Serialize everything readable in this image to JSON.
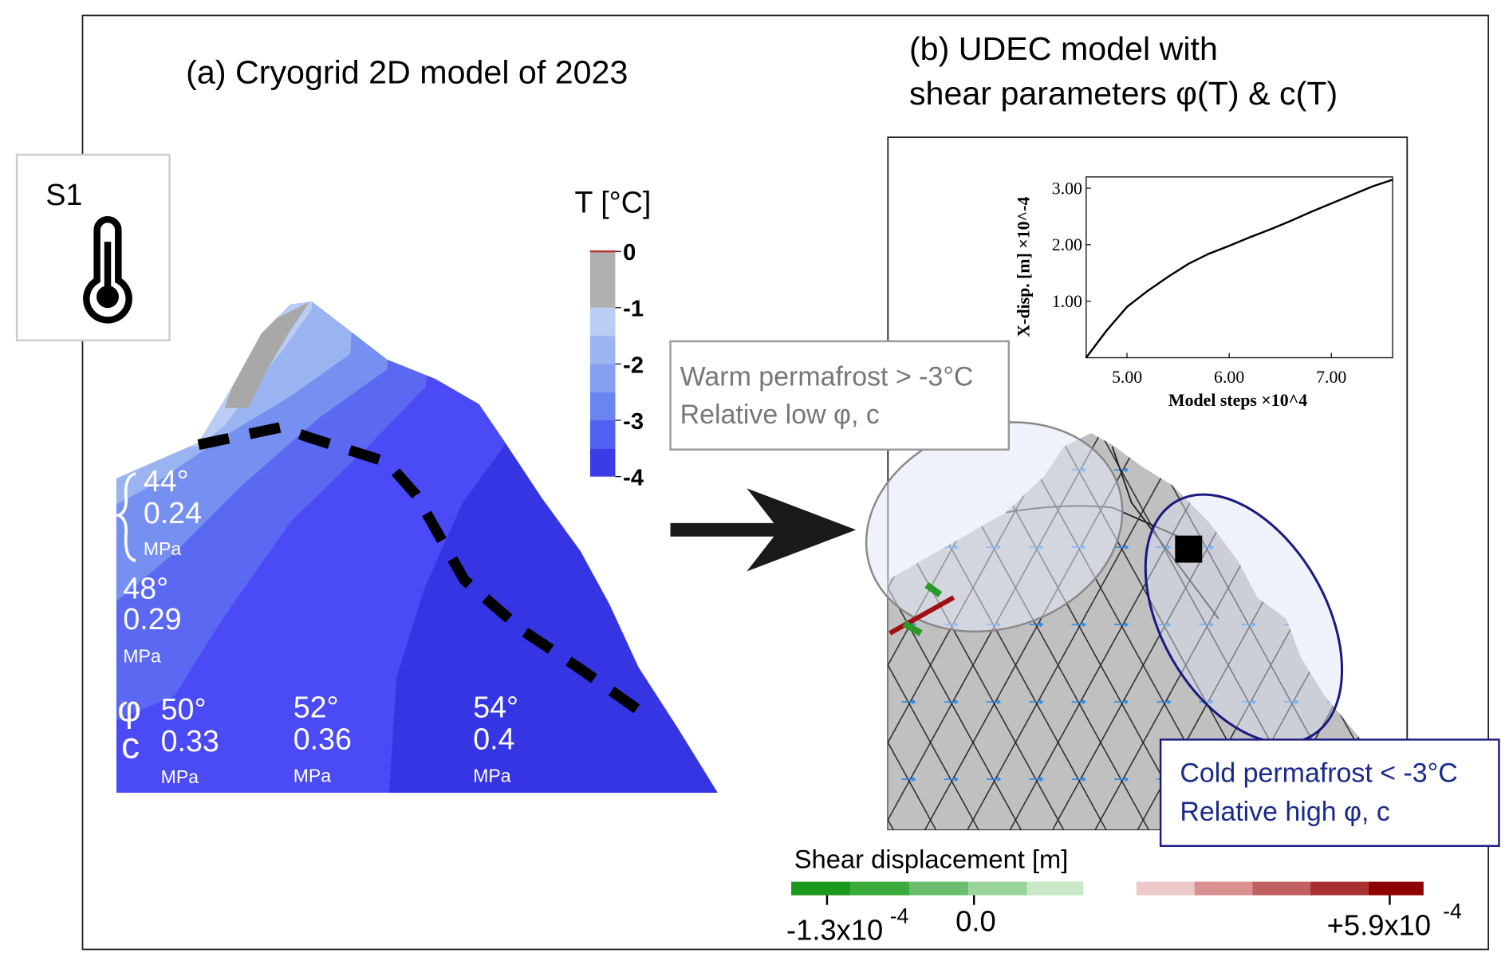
{
  "panel_a": {
    "title": "(a) Cryogrid 2D model of 2023",
    "scenario": "S1",
    "colorbar": {
      "title": "T [°C]",
      "lim": [
        0,
        -4
      ],
      "ticks": [
        0,
        -1,
        -2,
        -3,
        -4
      ]
    },
    "symbols": {
      "phi": "φ",
      "c": "c"
    },
    "zones": [
      {
        "phi": "44°",
        "c": "0.24",
        "unit": "MPa"
      },
      {
        "phi": "48°",
        "c": "0.29",
        "unit": "MPa"
      },
      {
        "phi": "50°",
        "c": "0.33",
        "unit": "MPa"
      },
      {
        "phi": "52°",
        "c": "0.36",
        "unit": "MPa"
      },
      {
        "phi": "54°",
        "c": "0.4",
        "unit": "MPa"
      }
    ]
  },
  "panel_b": {
    "title_line1": "(b) UDEC model with",
    "title_line2": "shear parameters φ(T) & c(T)",
    "warm_box": {
      "line1": "Warm permafrost > -3°C",
      "line2": "Relative low φ, c"
    },
    "cold_box": {
      "line1": "Cold permafrost < -3°C",
      "line2": "Relative high φ, c"
    },
    "shear_colorbar": {
      "title": "Shear displacement [m]",
      "ticks": [
        {
          "value": -0.00013,
          "label": "-1.3x10",
          "exponent": "-4"
        },
        {
          "value": 0,
          "label": "0.0"
        },
        {
          "value": 0.00059,
          "label": "+5.9x10",
          "exponent": "-4"
        }
      ]
    }
  },
  "chart_data": {
    "type": "line",
    "xlabel": "Model steps ×10^4",
    "ylabel": "X-disp. [m] ×10^-4",
    "x": [
      4.6,
      4.8,
      5.0,
      5.2,
      5.4,
      5.6,
      5.8,
      6.0,
      6.2,
      6.4,
      6.6,
      6.8,
      7.0,
      7.2,
      7.4,
      7.6
    ],
    "values": [
      0,
      0.48,
      0.9,
      1.18,
      1.43,
      1.66,
      1.84,
      1.98,
      2.13,
      2.27,
      2.42,
      2.58,
      2.73,
      2.88,
      3.03,
      3.15
    ],
    "color": "#000000",
    "xlim": [
      4.6,
      7.6
    ],
    "ylim": [
      0,
      3.2
    ],
    "xticks": [
      {
        "value": 5,
        "label": "5.00"
      },
      {
        "value": 6,
        "label": "6.00"
      },
      {
        "value": 7,
        "label": "7.00"
      }
    ],
    "yticks": [
      {
        "value": 1,
        "label": "1.00"
      },
      {
        "value": 2,
        "label": "2.00"
      },
      {
        "value": 3,
        "label": "3.00"
      }
    ]
  }
}
